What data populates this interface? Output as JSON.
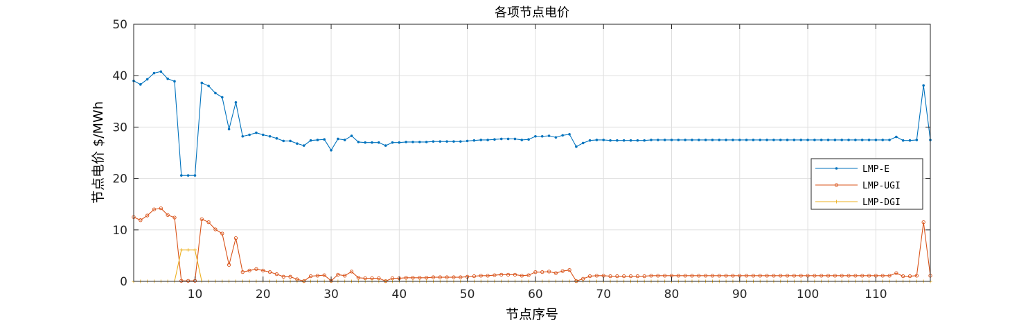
{
  "chart_data": {
    "type": "line",
    "title": "各项节点电价",
    "xlabel": "节点序号",
    "ylabel": "节点电价 $/MWh",
    "xlim": [
      1,
      118
    ],
    "ylim": [
      0,
      50
    ],
    "xticks": [
      10,
      20,
      30,
      40,
      50,
      60,
      70,
      80,
      90,
      100,
      110
    ],
    "yticks": [
      0,
      10,
      20,
      30,
      40,
      50
    ],
    "grid": true,
    "legend_position": "right",
    "series": [
      {
        "name": "LMP-E",
        "color": "#0072BD",
        "marker": "dot",
        "values": [
          39.0,
          38.3,
          39.3,
          40.5,
          40.8,
          39.4,
          38.9,
          20.6,
          20.6,
          20.6,
          38.6,
          38.0,
          36.6,
          35.8,
          29.6,
          34.8,
          28.2,
          28.5,
          28.9,
          28.5,
          28.2,
          27.8,
          27.3,
          27.3,
          26.8,
          26.4,
          27.4,
          27.5,
          27.6,
          25.5,
          27.7,
          27.5,
          28.3,
          27.1,
          27.0,
          27.0,
          27.0,
          26.4,
          27.0,
          27.0,
          27.1,
          27.1,
          27.1,
          27.1,
          27.2,
          27.2,
          27.2,
          27.2,
          27.2,
          27.3,
          27.4,
          27.5,
          27.5,
          27.6,
          27.7,
          27.7,
          27.7,
          27.5,
          27.6,
          28.2,
          28.2,
          28.3,
          28.0,
          28.4,
          28.6,
          26.2,
          26.9,
          27.4,
          27.5,
          27.5,
          27.4,
          27.4,
          27.4,
          27.4,
          27.4,
          27.4,
          27.5,
          27.5,
          27.5,
          27.5,
          27.5,
          27.5,
          27.5,
          27.5,
          27.5,
          27.5,
          27.5,
          27.5,
          27.5,
          27.5,
          27.5,
          27.5,
          27.5,
          27.5,
          27.5,
          27.5,
          27.5,
          27.5,
          27.5,
          27.5,
          27.5,
          27.5,
          27.5,
          27.5,
          27.5,
          27.5,
          27.5,
          27.5,
          27.5,
          27.5,
          27.5,
          27.5,
          28.1,
          27.4,
          27.4,
          27.5,
          38.1,
          27.5
        ]
      },
      {
        "name": "LMP-UGI",
        "color": "#D95319",
        "marker": "circle",
        "values": [
          12.5,
          11.9,
          12.8,
          14.0,
          14.2,
          12.9,
          12.4,
          0.1,
          0.1,
          0.1,
          12.1,
          11.5,
          10.1,
          9.3,
          3.2,
          8.4,
          1.8,
          2.1,
          2.4,
          2.1,
          1.8,
          1.4,
          0.9,
          0.9,
          0.4,
          0.05,
          1.0,
          1.1,
          1.2,
          0.1,
          1.3,
          1.1,
          1.9,
          0.7,
          0.6,
          0.6,
          0.6,
          0.05,
          0.6,
          0.6,
          0.7,
          0.7,
          0.7,
          0.7,
          0.8,
          0.8,
          0.8,
          0.8,
          0.8,
          0.9,
          1.0,
          1.1,
          1.1,
          1.2,
          1.3,
          1.3,
          1.3,
          1.1,
          1.2,
          1.8,
          1.8,
          1.9,
          1.6,
          2.0,
          2.2,
          0.05,
          0.5,
          1.0,
          1.1,
          1.1,
          1.0,
          1.0,
          1.0,
          1.0,
          1.0,
          1.0,
          1.1,
          1.1,
          1.1,
          1.1,
          1.1,
          1.1,
          1.1,
          1.1,
          1.1,
          1.1,
          1.1,
          1.1,
          1.1,
          1.1,
          1.1,
          1.1,
          1.1,
          1.1,
          1.1,
          1.1,
          1.1,
          1.1,
          1.1,
          1.1,
          1.1,
          1.1,
          1.1,
          1.1,
          1.1,
          1.1,
          1.1,
          1.1,
          1.1,
          1.1,
          1.1,
          1.1,
          1.6,
          1.0,
          1.0,
          1.1,
          11.5,
          1.1
        ]
      },
      {
        "name": "LMP-DGI",
        "color": "#EDB120",
        "marker": "plus",
        "values": [
          0,
          0,
          0,
          0,
          0,
          0,
          0,
          6.1,
          6.1,
          6.1,
          0,
          0,
          0,
          0,
          0,
          0,
          0,
          0,
          0,
          0,
          0,
          0,
          0,
          0,
          0,
          0,
          0,
          0,
          0,
          0,
          0,
          0,
          0,
          0,
          0,
          0,
          0,
          0,
          0,
          0,
          0,
          0,
          0,
          0,
          0,
          0,
          0,
          0,
          0,
          0,
          0,
          0,
          0,
          0,
          0,
          0,
          0,
          0,
          0,
          0,
          0,
          0,
          0,
          0,
          0,
          0,
          0,
          0,
          0,
          0,
          0,
          0,
          0,
          0,
          0,
          0,
          0,
          0,
          0,
          0,
          0,
          0,
          0,
          0,
          0,
          0,
          0,
          0,
          0,
          0,
          0,
          0,
          0,
          0,
          0,
          0,
          0,
          0,
          0,
          0,
          0,
          0,
          0,
          0,
          0,
          0,
          0,
          0,
          0,
          0,
          0,
          0,
          0,
          0,
          0,
          0,
          0,
          0
        ]
      }
    ]
  }
}
